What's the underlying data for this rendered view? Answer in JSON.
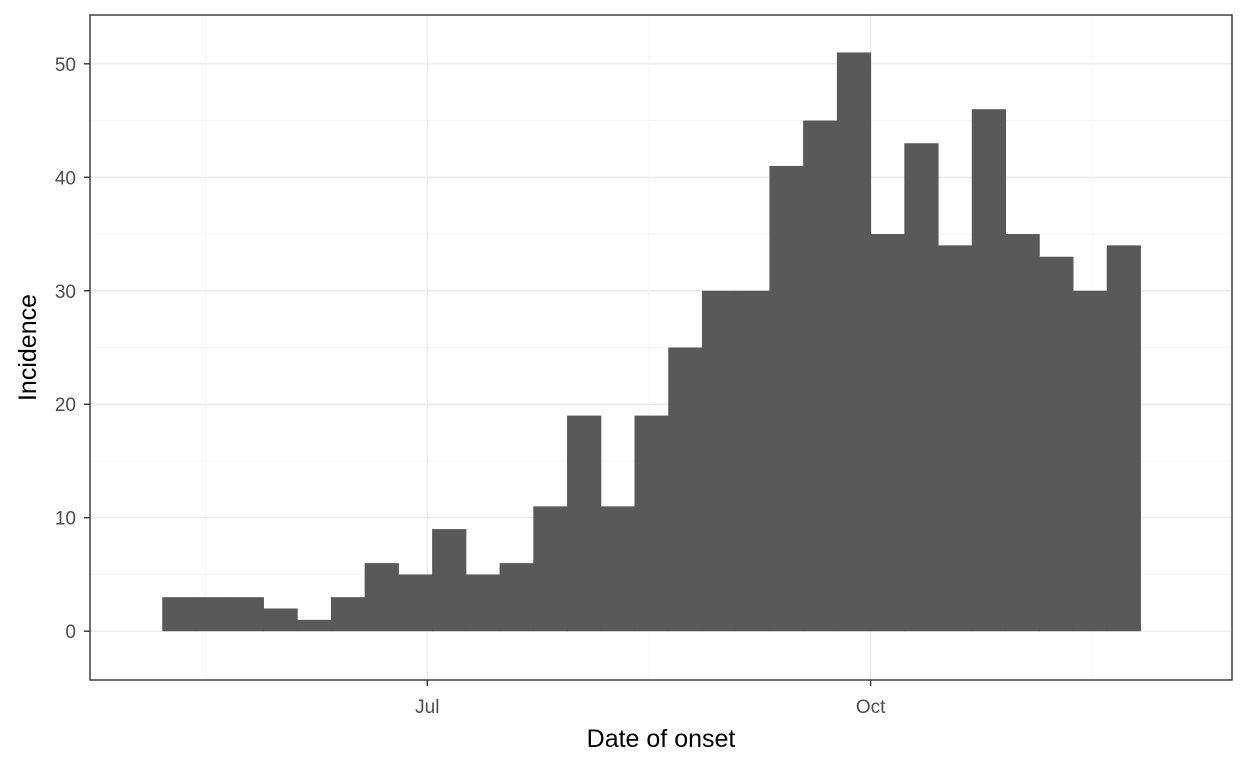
{
  "chart_data": {
    "type": "bar",
    "title": "",
    "xlabel": "Date of onset",
    "ylabel": "Incidence",
    "x_tick_labels": [
      {
        "label": "Jul",
        "date": "2014-07-01"
      },
      {
        "label": "Oct",
        "date": "2014-10-01"
      }
    ],
    "x_range": [
      "2014-04-22",
      "2014-12-15"
    ],
    "bin_width_days": 7,
    "bins_start": [
      "2014-05-07",
      "2014-05-14",
      "2014-05-21",
      "2014-05-28",
      "2014-06-04",
      "2014-06-11",
      "2014-06-18",
      "2014-06-25",
      "2014-07-02",
      "2014-07-09",
      "2014-07-16",
      "2014-07-23",
      "2014-07-30",
      "2014-08-06",
      "2014-08-13",
      "2014-08-20",
      "2014-08-27",
      "2014-09-03",
      "2014-09-10",
      "2014-09-17",
      "2014-09-24",
      "2014-10-01",
      "2014-10-08",
      "2014-10-15",
      "2014-10-22",
      "2014-10-29",
      "2014-11-05",
      "2014-11-12",
      "2014-11-19"
    ],
    "values": [
      3,
      3,
      3,
      2,
      1,
      3,
      6,
      5,
      9,
      5,
      6,
      11,
      19,
      11,
      19,
      25,
      30,
      30,
      41,
      45,
      51,
      35,
      43,
      34,
      46,
      35,
      33,
      30,
      34
    ],
    "y_ticks": [
      0,
      10,
      20,
      30,
      40,
      50
    ],
    "ylim": [
      -4.3,
      54.3
    ],
    "grid": true,
    "colors": {
      "bar": "#595959",
      "grid_major": "#ebebeb",
      "grid_minor": "#f5f5f5",
      "panel_border": "#333333",
      "axis_text": "#4d4d4d"
    }
  }
}
